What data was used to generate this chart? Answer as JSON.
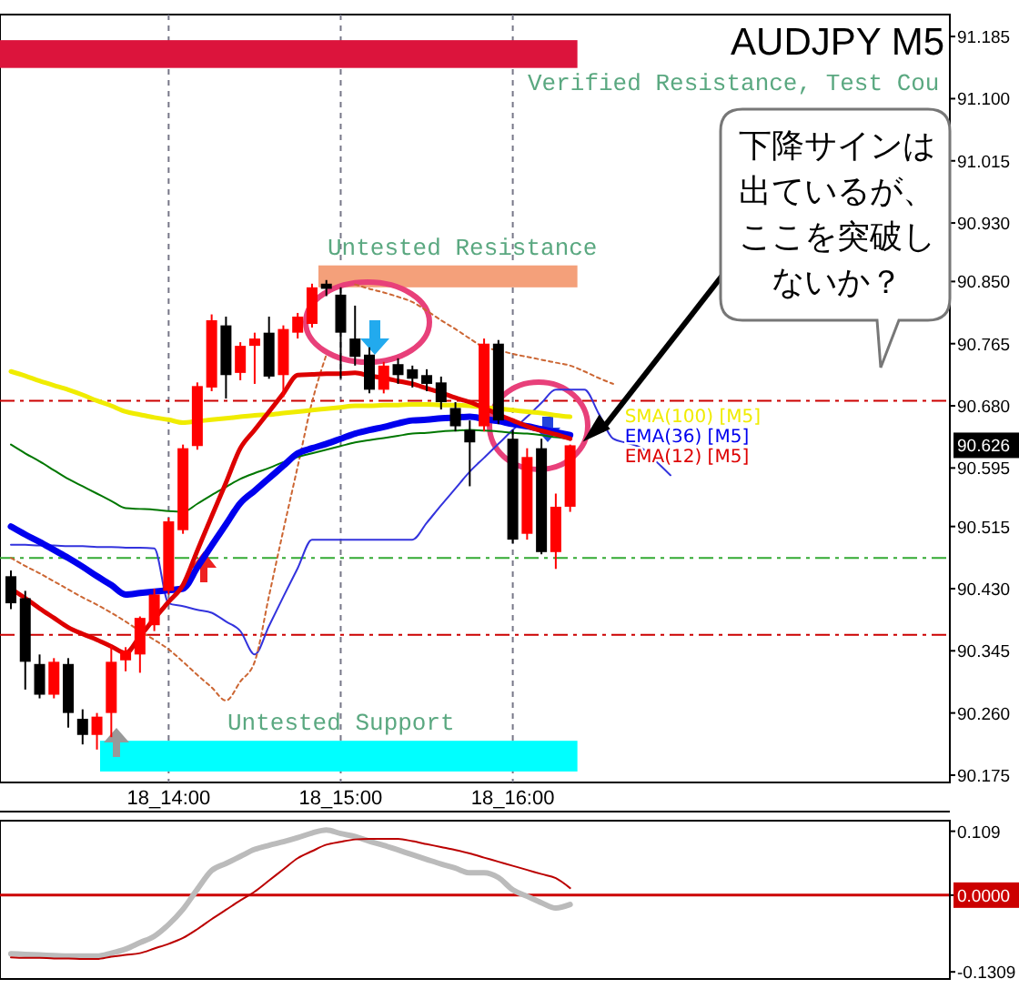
{
  "chart_data": [
    {
      "type": "candlestick",
      "title": "AUDJPY M5",
      "categories": [
        null,
        null,
        null,
        null,
        null,
        null,
        null,
        null,
        null,
        null,
        null,
        "18_14:00",
        null,
        null,
        null,
        null,
        null,
        null,
        null,
        null,
        null,
        null,
        null,
        "18_15:00",
        null,
        null,
        null,
        null,
        null,
        null,
        null,
        null,
        null,
        null,
        null,
        "18_16:00",
        null,
        null,
        null,
        null,
        null,
        null,
        null,
        null,
        null,
        null,
        null
      ],
      "ohlc": [
        [
          90.447,
          90.455,
          90.402,
          90.41
        ],
        [
          90.417,
          90.427,
          90.292,
          90.33
        ],
        [
          90.327,
          90.34,
          90.28,
          90.285
        ],
        [
          90.285,
          90.335,
          90.28,
          90.33
        ],
        [
          90.327,
          90.335,
          90.24,
          90.26
        ],
        [
          90.252,
          90.265,
          90.217,
          90.23
        ],
        [
          90.23,
          90.26,
          90.21,
          90.255
        ],
        [
          90.26,
          90.352,
          90.227,
          90.33
        ],
        [
          90.332,
          90.35,
          90.317,
          90.345
        ],
        [
          90.34,
          90.392,
          90.315,
          90.39
        ],
        [
          90.38,
          90.43,
          90.372,
          90.422
        ],
        [
          90.427,
          90.527,
          90.422,
          90.522
        ],
        [
          90.51,
          90.627,
          90.505,
          90.622
        ],
        [
          90.625,
          90.712,
          90.62,
          90.707
        ],
        [
          90.705,
          90.805,
          90.7,
          90.797
        ],
        [
          90.79,
          90.802,
          90.69,
          90.722
        ],
        [
          90.725,
          90.767,
          90.715,
          90.762
        ],
        [
          90.762,
          90.78,
          90.71,
          90.772
        ],
        [
          90.78,
          90.802,
          90.717,
          90.72
        ],
        [
          90.722,
          90.79,
          90.692,
          90.785
        ],
        [
          90.78,
          90.807,
          90.772,
          90.802
        ],
        [
          90.792,
          90.847,
          90.787,
          90.842
        ],
        [
          90.847,
          90.852,
          90.83,
          90.84
        ],
        [
          90.832,
          90.842,
          90.717,
          90.78
        ],
        [
          90.772,
          90.817,
          90.735,
          90.747
        ],
        [
          90.75,
          90.76,
          90.697,
          90.702
        ],
        [
          90.702,
          90.74,
          90.697,
          90.735
        ],
        [
          90.737,
          90.745,
          90.71,
          90.722
        ],
        [
          90.73,
          90.735,
          90.705,
          90.717
        ],
        [
          90.722,
          90.73,
          90.7,
          90.71
        ],
        [
          90.712,
          90.72,
          90.675,
          90.685
        ],
        [
          90.677,
          90.685,
          90.645,
          90.652
        ],
        [
          90.647,
          90.66,
          90.57,
          90.63
        ],
        [
          90.652,
          90.772,
          90.645,
          90.765
        ],
        [
          90.765,
          90.77,
          90.655,
          90.66
        ],
        [
          90.635,
          90.647,
          90.492,
          90.497
        ],
        [
          90.505,
          90.622,
          90.497,
          90.61
        ],
        [
          90.622,
          90.635,
          90.477,
          90.48
        ],
        [
          90.48,
          90.56,
          90.457,
          90.542
        ],
        [
          90.542,
          90.627,
          90.535,
          90.626
        ],
        null,
        null,
        null,
        null,
        null,
        null,
        null
      ],
      "colors": [
        "#000000",
        "#000000",
        "#000000",
        "#ff0000",
        "#000000",
        "#000000",
        "#ff0000",
        "#ff0000",
        "#ff0000",
        "#ff0000",
        "#ff0000",
        "#ff0000",
        "#ff0000",
        "#ff0000",
        "#ff0000",
        "#000000",
        "#ff0000",
        "#ff0000",
        "#000000",
        "#ff0000",
        "#ff0000",
        "#ff0000",
        "#000000",
        "#000000",
        "#000000",
        "#000000",
        "#ff0000",
        "#000000",
        "#000000",
        "#000000",
        "#000000",
        "#000000",
        "#000000",
        "#ff0000",
        "#000000",
        "#000000",
        "#ff0000",
        "#000000",
        "#ff0000",
        "#ff0000",
        null,
        null,
        null,
        null,
        null,
        null,
        null
      ],
      "series": [
        {
          "type": "line",
          "color": "#3333dd",
          "values": [
            90.49,
            90.49,
            90.489,
            90.489,
            90.488,
            90.488,
            90.487,
            90.487,
            90.486,
            90.486,
            90.485,
            90.41,
            90.406,
            90.401,
            90.397,
            90.385,
            90.372,
            90.34,
            90.379,
            90.419,
            90.458,
            90.497,
            90.497,
            90.497,
            90.497,
            90.497,
            90.497,
            90.497,
            90.497,
            90.52,
            90.544,
            90.567,
            90.59,
            90.609,
            90.628,
            90.647,
            90.665,
            90.684,
            90.702,
            90.702,
            90.702,
            90.669,
            90.635,
            90.629,
            90.622,
            90.604,
            90.585
          ]
        },
        {
          "type": "line",
          "color": "#cc6633",
          "line_style": "dotted",
          "values": [
            90.472,
            90.461,
            90.451,
            90.44,
            90.429,
            90.418,
            90.408,
            90.397,
            90.385,
            90.372,
            90.36,
            90.347,
            90.33,
            90.312,
            90.295,
            90.277,
            90.303,
            90.33,
            90.42,
            90.51,
            90.597,
            90.685,
            90.75,
            null,
            90.846,
            90.84,
            90.835,
            90.829,
            90.822,
            90.81,
            90.797,
            90.785,
            90.772,
            90.76,
            90.756,
            90.751,
            90.747,
            90.743,
            90.739,
            90.735,
            90.727,
            90.718,
            90.71,
            null,
            null,
            null,
            null
          ]
        },
        {
          "type": "line",
          "name": "SMA(100) [M5]",
          "color": "#f0ec00",
          "values": [
            90.727,
            90.721,
            90.714,
            90.708,
            90.702,
            90.695,
            90.687,
            90.68,
            90.672,
            90.668,
            90.664,
            90.661,
            90.657,
            90.659,
            90.661,
            90.663,
            90.665,
            90.667,
            90.668,
            90.67,
            90.672,
            90.674,
            90.676,
            90.678,
            90.68,
            90.68,
            90.681,
            90.681,
            90.682,
            90.682,
            90.681,
            90.681,
            90.68,
            90.678,
            90.676,
            90.674,
            90.672,
            90.67,
            90.667,
            90.665,
            null,
            null,
            null,
            null,
            null,
            null,
            null
          ]
        },
        {
          "type": "line",
          "color": "#007700",
          "values": [
            90.627,
            90.615,
            90.604,
            90.592,
            90.58,
            90.57,
            90.56,
            90.55,
            90.54,
            90.539,
            90.538,
            90.536,
            90.535,
            90.546,
            90.558,
            90.569,
            90.58,
            90.588,
            90.595,
            90.603,
            90.61,
            90.615,
            90.62,
            90.625,
            90.63,
            90.633,
            90.636,
            90.639,
            90.642,
            90.643,
            90.645,
            90.646,
            90.647,
            90.646,
            90.645,
            90.643,
            90.642,
            90.64,
            90.637,
            90.635,
            null,
            null,
            null,
            null,
            null,
            null,
            null
          ]
        },
        {
          "type": "line",
          "name": "EMA(36) [M5]",
          "color": "#0000ee",
          "values": [
            90.515,
            90.504,
            90.494,
            90.483,
            90.472,
            90.46,
            90.447,
            90.435,
            90.422,
            90.424,
            90.426,
            90.428,
            90.43,
            90.459,
            90.489,
            90.518,
            90.547,
            90.564,
            90.581,
            90.598,
            90.615,
            90.622,
            90.628,
            90.635,
            90.642,
            90.647,
            90.651,
            90.656,
            90.66,
            90.661,
            90.663,
            90.664,
            90.665,
            90.662,
            90.659,
            90.655,
            90.652,
            90.648,
            90.644,
            90.64,
            null,
            null,
            null,
            null,
            null,
            null,
            null
          ]
        },
        {
          "type": "line",
          "name": "EMA(12) [M5]",
          "color": "#dd0000",
          "values": [
            90.43,
            90.417,
            90.403,
            90.39,
            90.377,
            90.368,
            90.36,
            90.351,
            90.342,
            90.365,
            90.389,
            90.412,
            90.435,
            90.482,
            90.529,
            90.575,
            90.622,
            90.647,
            90.672,
            90.697,
            90.722,
            90.723,
            90.724,
            90.724,
            90.725,
            90.721,
            90.718,
            90.714,
            90.71,
            90.704,
            90.698,
            90.691,
            90.685,
            90.677,
            90.668,
            90.66,
            90.652,
            90.646,
            90.641,
            90.635,
            null,
            null,
            null,
            null,
            null,
            null,
            null
          ]
        }
      ],
      "ylim": [
        90.165,
        91.215
      ],
      "yticks": [
        91.185,
        {
          "value": 91.1,
          "label": "91.100"
        },
        91.015,
        {
          "value": 90.93,
          "label": "90.930"
        },
        {
          "value": 90.85,
          "label": "90.850"
        },
        90.765,
        {
          "value": 90.68,
          "label": "90.680"
        },
        90.595,
        90.515,
        {
          "value": 90.43,
          "label": "90.430"
        },
        90.345,
        {
          "value": 90.26,
          "label": "90.260"
        },
        90.175
      ],
      "grid": "x",
      "bands": [
        {
          "axis": "y",
          "from": 91.142,
          "to": 91.18,
          "label": "Verified Resistance, Test Cou",
          "color": "#dc143c"
        },
        {
          "axis": "y",
          "from": 90.842,
          "to": 90.872,
          "label": "Untested Resistance",
          "color": "#f4a07a"
        },
        {
          "axis": "y",
          "from": 90.18,
          "to": 90.222,
          "label": "Untested Support",
          "color": "#00ffff"
        }
      ],
      "ref_lines": [
        {
          "axis": "y",
          "value": 90.687,
          "color": "#cc0000",
          "line_style": "dashed"
        },
        {
          "axis": "y",
          "value": 90.472,
          "color": "#33aa33",
          "line_style": "dashed"
        },
        {
          "axis": "y",
          "value": 90.367,
          "color": "#cc0000",
          "line_style": "dashed"
        }
      ],
      "annotations": [
        "90.626",
        "下降サインは出ているが、ここを突破しないか？"
      ]
    },
    {
      "type": "line",
      "categories": [
        null,
        null,
        null,
        null,
        null,
        null,
        null,
        null,
        null,
        null,
        null,
        null,
        null,
        null,
        null,
        null,
        null,
        null,
        null,
        null,
        null,
        null,
        null,
        null,
        null,
        null,
        null,
        null,
        null,
        null,
        null,
        null,
        null,
        null,
        null,
        null,
        null,
        null,
        null,
        null,
        null,
        null,
        null,
        null,
        null,
        null,
        null
      ],
      "ylim": [
        -0.143,
        0.127
      ],
      "yticks": [
        0.109,
        {
          "value": 0,
          "label": "0.0000"
        },
        -0.1309
      ],
      "tick_labels": "y",
      "ref_lines": [
        {
          "axis": "y",
          "value": 0,
          "color": "#cc0000"
        }
      ],
      "series": [
        {
          "color": "#bbbbbb",
          "values": [
            -0.1,
            -0.101,
            -0.102,
            -0.103,
            -0.104,
            -0.104,
            -0.104,
            -0.099,
            -0.092,
            -0.081,
            -0.07,
            -0.05,
            -0.024,
            0.01,
            0.042,
            0.054,
            0.066,
            0.078,
            0.085,
            0.091,
            0.098,
            0.106,
            0.111,
            0.105,
            0.1,
            0.092,
            0.085,
            0.077,
            0.069,
            0.061,
            0.053,
            0.046,
            0.038,
            0.038,
            0.03,
            0.009,
            -0.002,
            -0.013,
            -0.022,
            -0.016,
            null,
            null,
            null,
            null,
            null,
            null,
            null
          ]
        },
        {
          "color": "#bb0000",
          "values": [
            -0.106,
            -0.107,
            -0.107,
            -0.108,
            -0.108,
            -0.109,
            -0.109,
            -0.105,
            -0.102,
            -0.099,
            -0.091,
            -0.083,
            -0.073,
            -0.058,
            -0.041,
            -0.025,
            -0.009,
            0.006,
            0.025,
            0.044,
            0.063,
            0.075,
            0.086,
            0.091,
            0.095,
            0.096,
            0.096,
            0.096,
            0.092,
            0.087,
            0.082,
            0.077,
            0.071,
            0.064,
            0.057,
            0.05,
            0.043,
            0.036,
            0.029,
            0.012,
            null,
            null,
            null,
            null,
            null,
            null,
            null
          ]
        }
      ]
    }
  ]
}
